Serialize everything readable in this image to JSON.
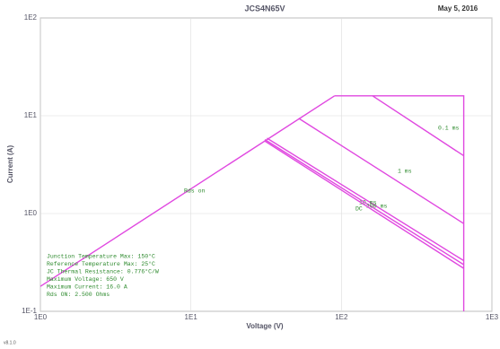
{
  "chart_data": {
    "type": "line",
    "title": "JCS4N65V",
    "date": "May 5, 2016",
    "x_label": "Voltage (V)",
    "y_label": "Current (A)",
    "version": "v8.1.0",
    "xscale": "log",
    "yscale": "log",
    "grid": true,
    "color": "#e048e0",
    "xlim": [
      1,
      1000
    ],
    "ylim": [
      0.1,
      100
    ],
    "xticks": [
      {
        "value": 1,
        "label": "1E0"
      },
      {
        "value": 10,
        "label": "1E1"
      },
      {
        "value": 100,
        "label": "1E2"
      },
      {
        "value": 1000,
        "label": "1E3"
      }
    ],
    "yticks": [
      {
        "value": 0.1,
        "label": "1E-1"
      },
      {
        "value": 1,
        "label": "1E0"
      },
      {
        "value": 10,
        "label": "1E1"
      },
      {
        "value": 100,
        "label": "1E2"
      }
    ],
    "series": [
      {
        "name": "Rds on",
        "x": [
          1,
          90
        ],
        "values": [
          0.18,
          16
        ]
      },
      {
        "name": "0.1 ms",
        "x": [
          161,
          650
        ],
        "values": [
          16,
          3.9
        ]
      },
      {
        "name": "1 ms",
        "x": [
          52,
          650
        ],
        "values": [
          9.4,
          0.79
        ]
      },
      {
        "name": "10 ms",
        "x": [
          32,
          650
        ],
        "values": [
          5.9,
          0.33
        ]
      },
      {
        "name": "100 ms",
        "x": [
          31,
          650
        ],
        "values": [
          5.7,
          0.3
        ]
      },
      {
        "name": "DC",
        "x": [
          31,
          650
        ],
        "values": [
          5.5,
          0.275
        ]
      }
    ],
    "boundary": {
      "x": [
        90,
        650,
        650
      ],
      "values": [
        16,
        16,
        0.1
      ]
    },
    "annotations": [
      "Junction Temperature Max: 150°C",
      "Reference Temperature Max: 25°C",
      "JC Thermal Resistance: 0.776°C/W",
      "Maximum Voltage: 650 V",
      "Maximum Current: 16.0 A",
      "Rds ON: 2.500 Ohms"
    ]
  }
}
